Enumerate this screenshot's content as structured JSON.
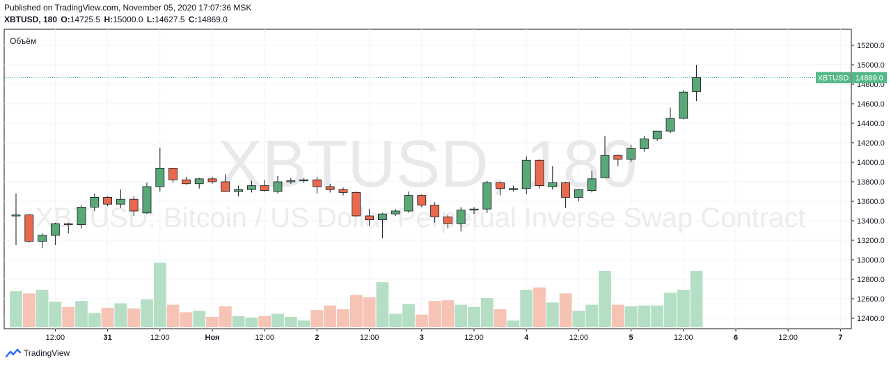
{
  "header": {
    "published": "Published on TradingView.com, November 05, 2020 17:07:36 MSK",
    "symbol": "XBTUSD, 180",
    "o_label": "O:",
    "o": "14725.5",
    "h_label": "H:",
    "h": "15000.0",
    "l_label": "L:",
    "l": "14627.5",
    "c_label": "C:",
    "c": "14869.0"
  },
  "watermark": {
    "symbol": "XBTUSD, 180",
    "description": "XBTUSD: Bitcoin / US Dollar Perpetual Inverse Swap Contract"
  },
  "volume_label": "Объём",
  "footer": {
    "brand": "TradingView"
  },
  "colors": {
    "up": "#53b987",
    "down": "#eb4d5c",
    "up_body": "#5ba877",
    "down_body": "#e8694b",
    "vol_up": "#b5dfc4",
    "vol_down": "#f6c3b5",
    "grid": "#f0f3fa",
    "price_line": "#26a69a"
  },
  "chart_data": {
    "type": "candlestick",
    "symbol": "XBTUSD",
    "interval": "180",
    "last_price": 14869.0,
    "last_price_label": "14869.0",
    "last_price_tag": "XBTUSD",
    "ylim": [
      12300,
      15350
    ],
    "y_ticks": [
      12400,
      12600,
      12800,
      13000,
      13200,
      13400,
      13600,
      13800,
      14000,
      14200,
      14400,
      14600,
      14800,
      15000,
      15200
    ],
    "y_tick_labels": [
      "12400.0",
      "12600.0",
      "12800.0",
      "13000.0",
      "13200.0",
      "13400.0",
      "13600.0",
      "13800.0",
      "14000.0",
      "14200.0",
      "14400.0",
      "14600.0",
      "14800.0",
      "15000.0",
      "15200.0"
    ],
    "x_ticks": [
      {
        "label": "12:00",
        "index": 3
      },
      {
        "label": "31",
        "index": 7
      },
      {
        "label": "12:00",
        "index": 11
      },
      {
        "label": "Ноя",
        "index": 15
      },
      {
        "label": "12:00",
        "index": 19
      },
      {
        "label": "2",
        "index": 23
      },
      {
        "label": "12:00",
        "index": 27
      },
      {
        "label": "3",
        "index": 31
      },
      {
        "label": "12:00",
        "index": 35
      },
      {
        "label": "4",
        "index": 39
      },
      {
        "label": "12:00",
        "index": 43
      },
      {
        "label": "5",
        "index": 47
      },
      {
        "label": "12:00",
        "index": 51
      },
      {
        "label": "6",
        "index": 55
      },
      {
        "label": "12:00",
        "index": 59
      },
      {
        "label": "7",
        "index": 63
      }
    ],
    "candles": [
      [
        13450,
        13680,
        13150,
        13460
      ],
      [
        13460,
        13470,
        13180,
        13190
      ],
      [
        13190,
        13270,
        13120,
        13250
      ],
      [
        13250,
        13380,
        13150,
        13370
      ],
      [
        13370,
        13380,
        13270,
        13360
      ],
      [
        13360,
        13560,
        13320,
        13540
      ],
      [
        13540,
        13680,
        13500,
        13640
      ],
      [
        13640,
        13650,
        13550,
        13570
      ],
      [
        13570,
        13720,
        13530,
        13620
      ],
      [
        13620,
        13650,
        13450,
        13500
      ],
      [
        13480,
        13790,
        13470,
        13750
      ],
      [
        13750,
        14150,
        13700,
        13940
      ],
      [
        13940,
        13940,
        13790,
        13820
      ],
      [
        13820,
        13850,
        13770,
        13780
      ],
      [
        13780,
        13840,
        13730,
        13830
      ],
      [
        13830,
        13850,
        13780,
        13800
      ],
      [
        13800,
        13880,
        13700,
        13700
      ],
      [
        13700,
        13760,
        13650,
        13720
      ],
      [
        13720,
        13810,
        13690,
        13760
      ],
      [
        13760,
        13820,
        13700,
        13710
      ],
      [
        13700,
        13860,
        13680,
        13800
      ],
      [
        13800,
        13840,
        13780,
        13810
      ],
      [
        13810,
        13840,
        13790,
        13820
      ],
      [
        13820,
        13850,
        13680,
        13750
      ],
      [
        13750,
        13780,
        13690,
        13720
      ],
      [
        13720,
        13740,
        13660,
        13690
      ],
      [
        13690,
        13700,
        13440,
        13450
      ],
      [
        13450,
        13520,
        13350,
        13410
      ],
      [
        13410,
        13480,
        13220,
        13470
      ],
      [
        13470,
        13520,
        13450,
        13500
      ],
      [
        13500,
        13700,
        13480,
        13660
      ],
      [
        13660,
        13670,
        13540,
        13560
      ],
      [
        13560,
        13590,
        13380,
        13440
      ],
      [
        13440,
        13460,
        13320,
        13370
      ],
      [
        13370,
        13540,
        13290,
        13510
      ],
      [
        13510,
        13540,
        13470,
        13520
      ],
      [
        13520,
        13810,
        13480,
        13790
      ],
      [
        13790,
        13800,
        13660,
        13730
      ],
      [
        13730,
        13760,
        13700,
        13730
      ],
      [
        13730,
        14060,
        13670,
        14020
      ],
      [
        14020,
        14030,
        13730,
        13760
      ],
      [
        13750,
        13960,
        13720,
        13790
      ],
      [
        13790,
        13800,
        13530,
        13640
      ],
      [
        13640,
        13720,
        13600,
        13720
      ],
      [
        13710,
        13910,
        13690,
        13830
      ],
      [
        13840,
        14270,
        13840,
        14070
      ],
      [
        14070,
        14080,
        13960,
        14030
      ],
      [
        14030,
        14180,
        14000,
        14140
      ],
      [
        14140,
        14270,
        14110,
        14240
      ],
      [
        14240,
        14320,
        14220,
        14320
      ],
      [
        14320,
        14560,
        14300,
        14450
      ],
      [
        14450,
        14740,
        14440,
        14720
      ],
      [
        14725.5,
        15000,
        14627.5,
        14869
      ]
    ],
    "volume_axis_note": "Volume bars shown in lower pane (relative heights)",
    "volume": [
      0.48,
      0.45,
      0.5,
      0.34,
      0.27,
      0.35,
      0.19,
      0.26,
      0.32,
      0.25,
      0.37,
      0.86,
      0.3,
      0.2,
      0.22,
      0.14,
      0.28,
      0.15,
      0.13,
      0.15,
      0.18,
      0.14,
      0.09,
      0.23,
      0.29,
      0.24,
      0.43,
      0.4,
      0.6,
      0.18,
      0.31,
      0.17,
      0.35,
      0.36,
      0.3,
      0.27,
      0.39,
      0.24,
      0.09,
      0.5,
      0.53,
      0.33,
      0.45,
      0.22,
      0.3,
      0.75,
      0.3,
      0.28,
      0.29,
      0.29,
      0.46,
      0.5,
      0.75
    ]
  }
}
